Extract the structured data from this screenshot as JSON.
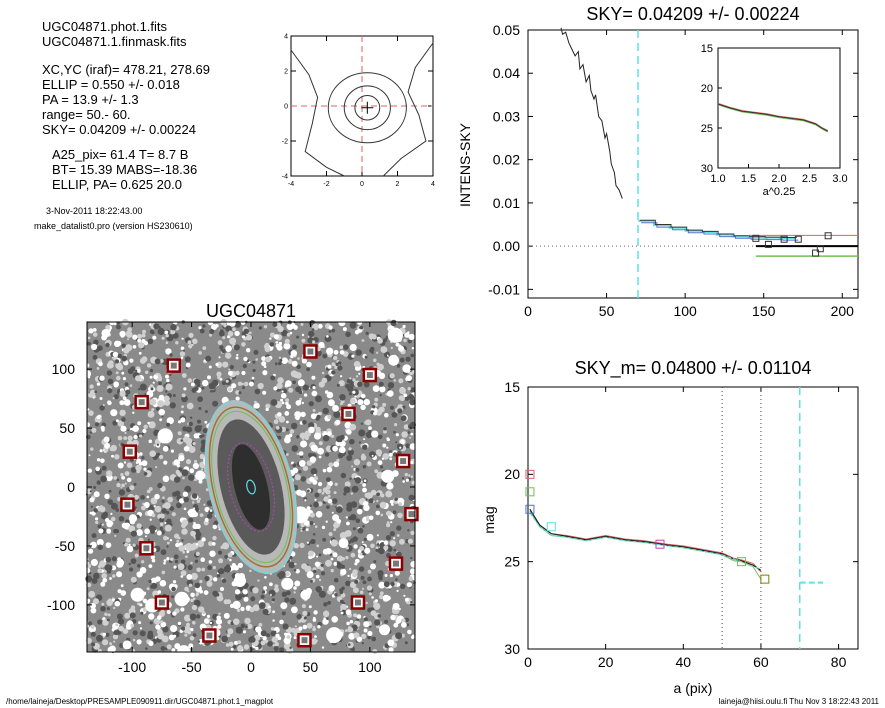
{
  "info": {
    "file1": "UGC04871.phot.1.fits",
    "file2": "UGC04871.1.finmask.fits",
    "xcyc": "XC,YC (iraf)=   478.21, 278.69",
    "ellip": "ELLIP = 0.550 +/- 0.018",
    "pa": "PA   =  13.9 +/-   1.3",
    "range": "range=   50.-   60.",
    "sky": "SKY= 0.04209 +/- 0.00224",
    "a25": "A25_pix= 61.4   T= 8.7  B",
    "bt": "BT=  15.39   MABS=-18.36",
    "ellip_pa": "ELLIP, PA= 0.625   20.0",
    "date": "3-Nov-2011 18:22:43.00",
    "program": "make_datalist0.pro (version HS230610)"
  },
  "footer": {
    "path": "/home/laineja/Desktop/PRESAMPLE090911.dir/UGC04871.phot.1_magplot",
    "user": "laineja@hiisi.oulu.fi  Thu Nov  3 18:22:43 2011"
  },
  "colors": {
    "cyan": "#5fe0e8",
    "red": "#e06060",
    "green": "#70c050",
    "blue": "#5070d0",
    "brown": "#9a7030",
    "olive": "#808000",
    "magenta": "#c040c0",
    "darkred": "#8b0000"
  },
  "chart_data": [
    {
      "id": "contour",
      "type": "contour",
      "xlim": [
        -4,
        4
      ],
      "ylim": [
        -4,
        4
      ],
      "xticks": [
        "-4",
        "-2",
        "0",
        "2",
        "4"
      ],
      "yticks": [
        "4",
        "2",
        "0",
        "-2",
        "-4"
      ]
    },
    {
      "id": "sky",
      "type": "line",
      "title": "SKY= 0.04209 +/- 0.00224",
      "xlabel": "",
      "ylabel": "INTENS-SKY",
      "xlim": [
        0,
        210
      ],
      "ylim": [
        -0.012,
        0.05
      ],
      "xticks": [
        "0",
        "50",
        "100",
        "150",
        "200"
      ],
      "yticks": [
        "0.05",
        "0.04",
        "0.03",
        "0.02",
        "0.01",
        "0.00",
        "-0.01"
      ],
      "profile": [
        [
          21,
          0.0505
        ],
        [
          22,
          0.049
        ],
        [
          24,
          0.0495
        ],
        [
          26,
          0.047
        ],
        [
          28,
          0.0455
        ],
        [
          30,
          0.044
        ],
        [
          32,
          0.045
        ],
        [
          33,
          0.041
        ],
        [
          35,
          0.042
        ],
        [
          37,
          0.038
        ],
        [
          39,
          0.0395
        ],
        [
          40,
          0.036
        ],
        [
          42,
          0.034
        ],
        [
          43,
          0.035
        ],
        [
          45,
          0.03
        ],
        [
          47,
          0.029
        ],
        [
          49,
          0.025
        ],
        [
          50,
          0.026
        ],
        [
          52,
          0.022
        ],
        [
          53,
          0.019
        ],
        [
          55,
          0.017
        ],
        [
          56,
          0.014
        ],
        [
          58,
          0.013
        ],
        [
          60,
          0.011
        ]
      ],
      "steps": [
        [
          70,
          0.0058
        ],
        [
          80,
          0.0048
        ],
        [
          90,
          0.0042
        ],
        [
          100,
          0.0035
        ],
        [
          110,
          0.0032
        ],
        [
          120,
          0.0026
        ],
        [
          130,
          0.0022
        ],
        [
          140,
          0.002
        ],
        [
          150,
          0.0019
        ],
        [
          160,
          0.0018
        ],
        [
          170,
          0.0018
        ]
      ],
      "sky_boxes": [
        [
          145,
          0.0018
        ],
        [
          153,
          0.0004
        ],
        [
          163,
          0.0016
        ],
        [
          172,
          0.0016
        ],
        [
          183,
          -0.0016
        ],
        [
          186,
          -0.0006
        ],
        [
          191,
          0.0024
        ]
      ],
      "red_line": [
        140,
        210,
        0.0025
      ],
      "black_line": [
        145,
        210,
        0.0
      ],
      "green_line": [
        145,
        210,
        -0.0023
      ],
      "cyan_vline": 70,
      "inset": {
        "xlabel": "a^0.25",
        "xlim": [
          1.0,
          3.0
        ],
        "ylim": [
          15,
          30
        ],
        "xticks": [
          "1.0",
          "1.5",
          "2.0",
          "2.5",
          "3.0"
        ],
        "yticks": [
          "15",
          "20",
          "25",
          "30"
        ],
        "curve": [
          [
            1.0,
            22.0
          ],
          [
            1.2,
            22.5
          ],
          [
            1.4,
            22.9
          ],
          [
            1.6,
            23.1
          ],
          [
            1.8,
            23.3
          ],
          [
            2.0,
            23.6
          ],
          [
            2.2,
            23.8
          ],
          [
            2.4,
            24.0
          ],
          [
            2.6,
            24.5
          ],
          [
            2.7,
            25.0
          ],
          [
            2.8,
            25.4
          ]
        ]
      }
    },
    {
      "id": "image",
      "type": "image",
      "title": "UGC04871",
      "xlim": [
        -138,
        138
      ],
      "ylim": [
        -140,
        140
      ],
      "xticks": [
        "-100",
        "-50",
        "0",
        "50",
        "100"
      ],
      "yticks": [
        "100",
        "50",
        "0",
        "-50",
        "-100"
      ],
      "stars": [
        [
          -65,
          103
        ],
        [
          50,
          115
        ],
        [
          100,
          95
        ],
        [
          -92,
          72
        ],
        [
          82,
          62
        ],
        [
          -102,
          30
        ],
        [
          128,
          22
        ],
        [
          -104,
          -15
        ],
        [
          135,
          -23
        ],
        [
          -88,
          -52
        ],
        [
          122,
          -65
        ],
        [
          -75,
          -98
        ],
        [
          90,
          -98
        ],
        [
          -35,
          -126
        ],
        [
          45,
          -130
        ]
      ],
      "galaxy": {
        "a": 61.4,
        "b": 23,
        "pa_deg": 13.9
      }
    },
    {
      "id": "mag",
      "type": "line",
      "title": "SKY_m=  0.04800 +/- 0.01104",
      "xlabel": "a (pix)",
      "ylabel": "mag",
      "xlim": [
        0,
        85
      ],
      "ylim": [
        15,
        30
      ],
      "xticks": [
        "0",
        "20",
        "40",
        "60",
        "80"
      ],
      "yticks": [
        "15",
        "20",
        "25",
        "30"
      ],
      "dotted_vlines": [
        50,
        60
      ],
      "cyan_vline": 70,
      "cyan_seg": [
        70,
        76,
        26.2
      ],
      "left_boxes": [
        [
          "red",
          0.5,
          20.0
        ],
        [
          "green",
          0.5,
          21.0
        ],
        [
          "blue",
          0.5,
          22.0
        ]
      ],
      "series": [
        {
          "name": "red",
          "pts": [
            [
              0.5,
              22.0
            ],
            [
              3,
              22.9
            ],
            [
              6,
              23.4
            ],
            [
              10,
              23.5
            ],
            [
              15,
              23.7
            ],
            [
              20,
              23.5
            ],
            [
              25,
              23.7
            ],
            [
              30,
              23.8
            ],
            [
              33,
              23.9
            ],
            [
              36,
              24.0
            ],
            [
              40,
              24.1
            ],
            [
              45,
              24.3
            ],
            [
              50,
              24.5
            ],
            [
              53,
              24.8
            ],
            [
              55,
              24.9
            ],
            [
              58,
              25.1
            ],
            [
              60,
              25.6
            ]
          ]
        },
        {
          "name": "green",
          "pts": [
            [
              0.5,
              22.1
            ],
            [
              3,
              23.0
            ],
            [
              6,
              23.5
            ],
            [
              10,
              23.6
            ],
            [
              15,
              23.8
            ],
            [
              20,
              23.6
            ],
            [
              25,
              23.8
            ],
            [
              30,
              23.9
            ],
            [
              33,
              24.0
            ],
            [
              36,
              24.1
            ],
            [
              40,
              24.2
            ],
            [
              45,
              24.4
            ],
            [
              50,
              24.6
            ],
            [
              53,
              24.95
            ],
            [
              55,
              25.0
            ],
            [
              58,
              25.3
            ],
            [
              60,
              26.0
            ]
          ]
        },
        {
          "name": "black",
          "pts": [
            [
              0.5,
              22.0
            ],
            [
              3,
              22.9
            ],
            [
              6,
              23.4
            ],
            [
              10,
              23.55
            ],
            [
              15,
              23.75
            ],
            [
              20,
              23.55
            ],
            [
              25,
              23.75
            ],
            [
              30,
              23.85
            ],
            [
              33,
              23.95
            ],
            [
              36,
              24.05
            ],
            [
              40,
              24.15
            ],
            [
              45,
              24.35
            ],
            [
              50,
              24.55
            ],
            [
              53,
              24.85
            ],
            [
              55,
              24.95
            ],
            [
              58,
              25.2
            ],
            [
              60,
              25.5
            ]
          ]
        },
        {
          "name": "cyan",
          "pts": [
            [
              0.5,
              22.2
            ],
            [
              3,
              23.0
            ],
            [
              6,
              23.5
            ],
            [
              10,
              23.6
            ],
            [
              15,
              23.8
            ],
            [
              20,
              23.6
            ],
            [
              25,
              23.8
            ],
            [
              30,
              23.9
            ],
            [
              36,
              24.1
            ],
            [
              40,
              24.2
            ],
            [
              45,
              24.4
            ],
            [
              50,
              24.6
            ],
            [
              55,
              25.0
            ],
            [
              58,
              25.3
            ],
            [
              60,
              25.4
            ]
          ]
        }
      ],
      "mid_boxes": [
        [
          "cyan",
          6,
          23.0
        ],
        [
          "magenta",
          34,
          24.0
        ],
        [
          "green",
          55,
          25.0
        ],
        [
          "olive",
          61,
          26.0
        ]
      ]
    }
  ]
}
